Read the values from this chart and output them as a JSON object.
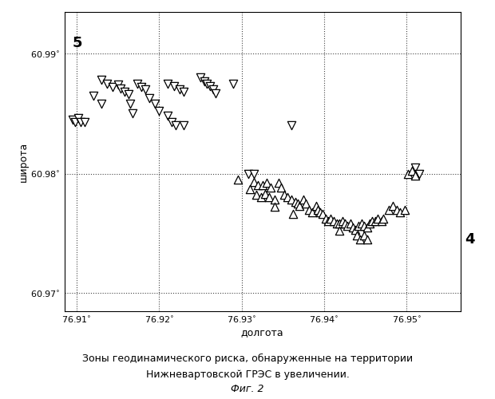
{
  "title_line1": "Зоны геодинамического риска, обнаруженные на территории",
  "title_line2": "Нижневартовской ГРЭС в увеличении.",
  "title_line3": "Фиг. 2",
  "xlabel": "долгота",
  "ylabel": "широта",
  "xlim": [
    76.9085,
    76.9565
  ],
  "ylim": [
    60.9685,
    60.9935
  ],
  "xticks": [
    76.91,
    76.92,
    76.93,
    76.94,
    76.95
  ],
  "yticks": [
    60.97,
    60.98,
    60.99
  ],
  "background_color": "#ffffff",
  "grid_color": "#444444",
  "label5": "5",
  "label4": "4",
  "down_triangles": [
    [
      76.9095,
      60.9845
    ],
    [
      76.9098,
      60.9843
    ],
    [
      76.9102,
      60.9846
    ],
    [
      76.9105,
      60.9843
    ],
    [
      76.911,
      60.9843
    ],
    [
      76.912,
      60.9865
    ],
    [
      76.913,
      60.9878
    ],
    [
      76.9137,
      60.9875
    ],
    [
      76.9143,
      60.9872
    ],
    [
      76.915,
      60.9874
    ],
    [
      76.9153,
      60.9871
    ],
    [
      76.9158,
      60.9868
    ],
    [
      76.9163,
      60.9866
    ],
    [
      76.9165,
      60.9858
    ],
    [
      76.9168,
      60.985
    ],
    [
      76.913,
      60.9858
    ],
    [
      76.9173,
      60.9875
    ],
    [
      76.9178,
      60.9872
    ],
    [
      76.9183,
      60.987
    ],
    [
      76.9188,
      60.9863
    ],
    [
      76.9195,
      60.9858
    ],
    [
      76.92,
      60.9852
    ],
    [
      76.921,
      60.9848
    ],
    [
      76.9215,
      60.9843
    ],
    [
      76.922,
      60.984
    ],
    [
      76.923,
      60.984
    ],
    [
      76.921,
      60.9875
    ],
    [
      76.9218,
      60.9873
    ],
    [
      76.9225,
      60.987
    ],
    [
      76.923,
      60.9868
    ],
    [
      76.925,
      60.988
    ],
    [
      76.9255,
      60.9877
    ],
    [
      76.9258,
      60.9875
    ],
    [
      76.9262,
      60.9873
    ],
    [
      76.9265,
      60.987
    ],
    [
      76.9268,
      60.9867
    ],
    [
      76.929,
      60.9875
    ],
    [
      76.9308,
      60.98
    ],
    [
      76.9315,
      60.98
    ],
    [
      76.936,
      60.984
    ],
    [
      76.951,
      60.9805
    ],
    [
      76.9515,
      60.98
    ]
  ],
  "up_triangles": [
    [
      76.9295,
      60.9795
    ],
    [
      76.9315,
      60.9793
    ],
    [
      76.932,
      60.979
    ],
    [
      76.9325,
      60.979
    ],
    [
      76.933,
      60.9792
    ],
    [
      76.9335,
      60.9788
    ],
    [
      76.9318,
      60.9782
    ],
    [
      76.9323,
      60.978
    ],
    [
      76.9328,
      60.9783
    ],
    [
      76.9333,
      60.978
    ],
    [
      76.934,
      60.9778
    ],
    [
      76.931,
      60.9787
    ],
    [
      76.9345,
      60.9792
    ],
    [
      76.9348,
      60.9788
    ],
    [
      76.9352,
      60.9782
    ],
    [
      76.9355,
      60.978
    ],
    [
      76.936,
      60.9778
    ],
    [
      76.9365,
      60.9776
    ],
    [
      76.9368,
      60.9775
    ],
    [
      76.937,
      60.9773
    ],
    [
      76.9375,
      60.9778
    ],
    [
      76.9378,
      60.9775
    ],
    [
      76.9382,
      60.977
    ],
    [
      76.9385,
      60.9768
    ],
    [
      76.939,
      60.9773
    ],
    [
      76.9392,
      60.977
    ],
    [
      76.9395,
      60.9768
    ],
    [
      76.9398,
      60.9766
    ],
    [
      76.9402,
      60.9762
    ],
    [
      76.9405,
      60.976
    ],
    [
      76.9408,
      60.9762
    ],
    [
      76.9412,
      60.976
    ],
    [
      76.9415,
      60.9758
    ],
    [
      76.9418,
      60.9758
    ],
    [
      76.9422,
      60.976
    ],
    [
      76.9425,
      60.9758
    ],
    [
      76.9428,
      60.9756
    ],
    [
      76.9432,
      60.9758
    ],
    [
      76.9435,
      60.9755
    ],
    [
      76.9438,
      60.9753
    ],
    [
      76.9442,
      60.9756
    ],
    [
      76.9445,
      60.9758
    ],
    [
      76.9448,
      60.9756
    ],
    [
      76.9452,
      60.9755
    ],
    [
      76.9455,
      60.9758
    ],
    [
      76.9458,
      60.976
    ],
    [
      76.9462,
      60.976
    ],
    [
      76.9465,
      60.9762
    ],
    [
      76.947,
      60.976
    ],
    [
      76.9472,
      60.9762
    ],
    [
      76.934,
      60.9772
    ],
    [
      76.9362,
      60.9766
    ],
    [
      76.9418,
      60.9752
    ],
    [
      76.944,
      60.9748
    ],
    [
      76.9443,
      60.9745
    ],
    [
      76.9448,
      60.9748
    ],
    [
      76.9452,
      60.9745
    ],
    [
      76.9478,
      60.977
    ],
    [
      76.9483,
      60.9773
    ],
    [
      76.9488,
      60.977
    ],
    [
      76.9492,
      60.9768
    ],
    [
      76.9498,
      60.977
    ],
    [
      76.9502,
      60.98
    ],
    [
      76.9506,
      60.9802
    ],
    [
      76.951,
      60.9798
    ]
  ]
}
